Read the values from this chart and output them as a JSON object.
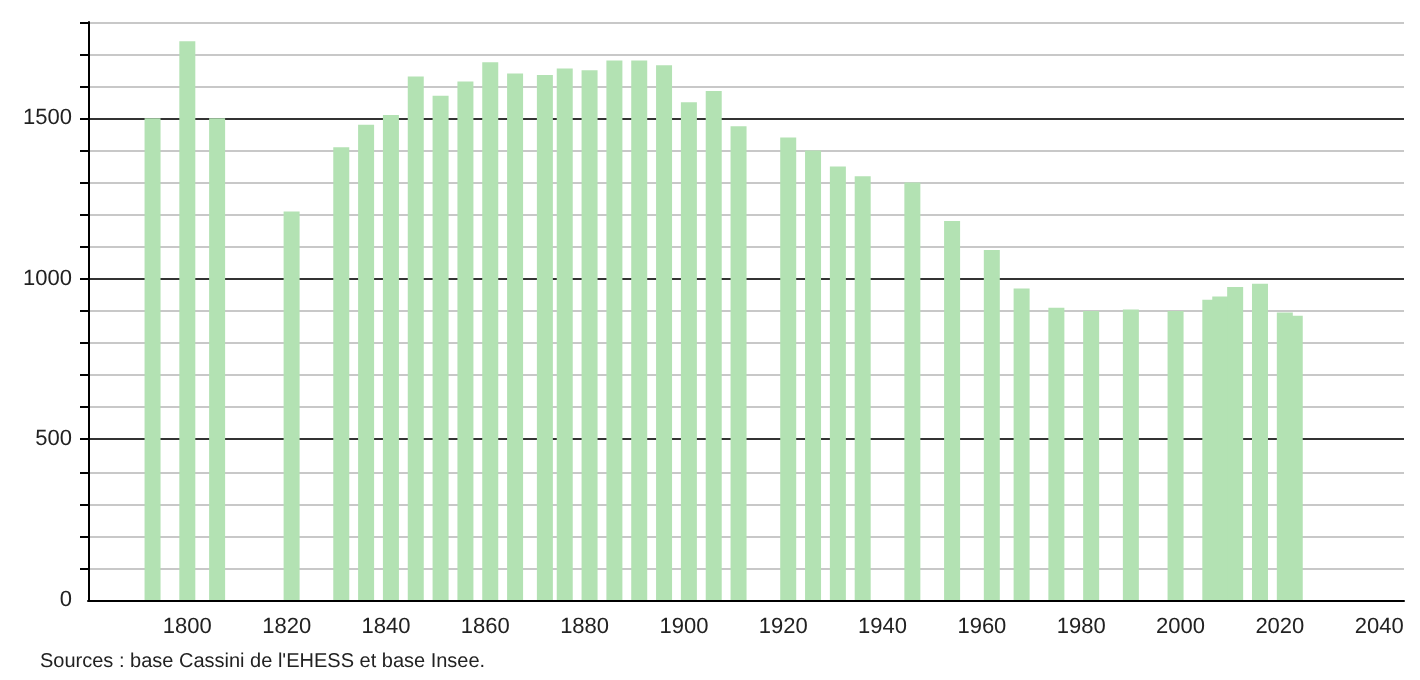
{
  "chart_data": {
    "type": "bar",
    "x": [
      1793,
      1800,
      1806,
      1821,
      1831,
      1836,
      1841,
      1846,
      1851,
      1856,
      1861,
      1866,
      1872,
      1876,
      1881,
      1886,
      1891,
      1896,
      1901,
      1906,
      1911,
      1921,
      1926,
      1931,
      1936,
      1946,
      1954,
      1962,
      1968,
      1975,
      1982,
      1990,
      1999,
      2006,
      2008,
      2011,
      2016,
      2021,
      2023
    ],
    "values": [
      1500,
      1740,
      1500,
      1210,
      1410,
      1480,
      1510,
      1630,
      1570,
      1615,
      1675,
      1640,
      1635,
      1655,
      1650,
      1680,
      1680,
      1665,
      1550,
      1585,
      1475,
      1440,
      1400,
      1350,
      1320,
      1300,
      1180,
      1090,
      970,
      910,
      900,
      905,
      900,
      935,
      945,
      975,
      985,
      895,
      885
    ],
    "color": "#b3e2b3",
    "xlim": [
      1780,
      2045
    ],
    "xticks": [
      1800,
      1820,
      1840,
      1860,
      1880,
      1900,
      1920,
      1940,
      1960,
      1980,
      2000,
      2020,
      2040
    ],
    "ylim": [
      0,
      1800
    ],
    "yticks": [
      0,
      {
        "value": 100,
        "label": null
      },
      {
        "value": 200,
        "label": null
      },
      {
        "value": 300,
        "label": null
      },
      {
        "value": 400,
        "label": null
      },
      500,
      {
        "value": 600,
        "label": null
      },
      {
        "value": 700,
        "label": null
      },
      {
        "value": 800,
        "label": null
      },
      {
        "value": 900,
        "label": null
      },
      1000,
      {
        "value": 1100,
        "label": null
      },
      {
        "value": 1200,
        "label": null
      },
      {
        "value": 1300,
        "label": null
      },
      {
        "value": 1400,
        "label": null
      },
      1500,
      {
        "value": 1600,
        "label": null
      },
      {
        "value": 1700,
        "label": null
      },
      {
        "value": 1800,
        "label": null
      }
    ],
    "grid": "y",
    "annotations": [
      "Sources : base Cassini de l'EHESS et base Insee."
    ]
  }
}
